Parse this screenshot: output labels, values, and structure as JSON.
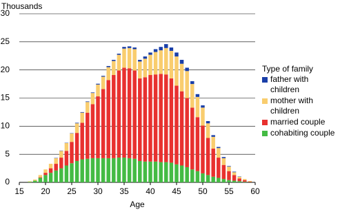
{
  "chart_data": {
    "type": "stacked-bar",
    "y_label": "Thousands",
    "x_label": "Age",
    "legend_title": "Type of family",
    "x": [
      17,
      18,
      19,
      20,
      21,
      22,
      23,
      24,
      25,
      26,
      27,
      28,
      29,
      30,
      31,
      32,
      33,
      34,
      35,
      36,
      37,
      38,
      39,
      40,
      41,
      42,
      43,
      44,
      45,
      46,
      47,
      48,
      49,
      50,
      51,
      52,
      53,
      54,
      55,
      56,
      57,
      58,
      59
    ],
    "series": [
      {
        "name": "cohabiting couple",
        "color": "#44bb44",
        "values": [
          0.1,
          0.3,
          0.8,
          1.3,
          1.7,
          2.1,
          2.5,
          3.0,
          3.4,
          3.8,
          4.1,
          4.2,
          4.3,
          4.3,
          4.3,
          4.3,
          4.3,
          4.4,
          4.4,
          4.3,
          4.2,
          3.8,
          3.7,
          3.7,
          3.7,
          3.6,
          3.6,
          3.5,
          3.2,
          3.0,
          2.7,
          2.3,
          2.0,
          1.6,
          1.3,
          1.0,
          0.8,
          0.6,
          0.4,
          0.3,
          0.2,
          0.1,
          0.05
        ]
      },
      {
        "name": "married couple",
        "color": "#e8312f",
        "values": [
          0,
          0,
          0.1,
          0.4,
          0.8,
          1.2,
          1.9,
          2.6,
          3.8,
          5.0,
          6.5,
          8.2,
          9.6,
          11.0,
          12.3,
          13.9,
          14.8,
          15.5,
          16.0,
          16.0,
          15.7,
          14.7,
          15.0,
          15.4,
          15.5,
          15.7,
          15.6,
          15.0,
          14.0,
          13.2,
          12.3,
          11.0,
          9.6,
          8.5,
          6.6,
          5.0,
          3.6,
          2.5,
          1.6,
          1.0,
          0.5,
          0.3,
          0.1
        ]
      },
      {
        "name": "mother with children",
        "color": "#f9cd6e",
        "values": [
          0.1,
          0.2,
          0.4,
          0.6,
          0.8,
          1.0,
          1.2,
          1.4,
          1.5,
          1.7,
          1.8,
          1.9,
          2.0,
          2.1,
          2.2,
          2.3,
          2.5,
          2.8,
          3.4,
          3.6,
          3.8,
          3.0,
          3.3,
          3.6,
          4.0,
          4.2,
          4.7,
          4.9,
          5.2,
          4.9,
          4.8,
          4.2,
          3.6,
          3.2,
          2.6,
          2.1,
          1.7,
          1.2,
          0.8,
          0.5,
          0.3,
          0.2,
          0.1
        ]
      },
      {
        "name": "father with children",
        "color": "#1a3fa8",
        "values": [
          0,
          0,
          0,
          0,
          0,
          0.05,
          0.05,
          0.05,
          0.05,
          0.1,
          0.1,
          0.1,
          0.1,
          0.15,
          0.15,
          0.2,
          0.2,
          0.2,
          0.3,
          0.3,
          0.3,
          0.3,
          0.4,
          0.4,
          0.5,
          0.6,
          0.7,
          0.6,
          0.7,
          0.7,
          0.6,
          0.5,
          0.5,
          0.4,
          0.4,
          0.3,
          0.2,
          0.2,
          0.1,
          0.1,
          0.05,
          0,
          0
        ]
      }
    ],
    "xlim": [
      15,
      60
    ],
    "xticks": [
      15,
      20,
      25,
      30,
      35,
      40,
      45,
      50,
      55,
      60
    ],
    "ylim": [
      0,
      30
    ],
    "yticks": [
      0,
      5,
      10,
      15,
      20,
      25,
      30
    ],
    "grid": true
  }
}
